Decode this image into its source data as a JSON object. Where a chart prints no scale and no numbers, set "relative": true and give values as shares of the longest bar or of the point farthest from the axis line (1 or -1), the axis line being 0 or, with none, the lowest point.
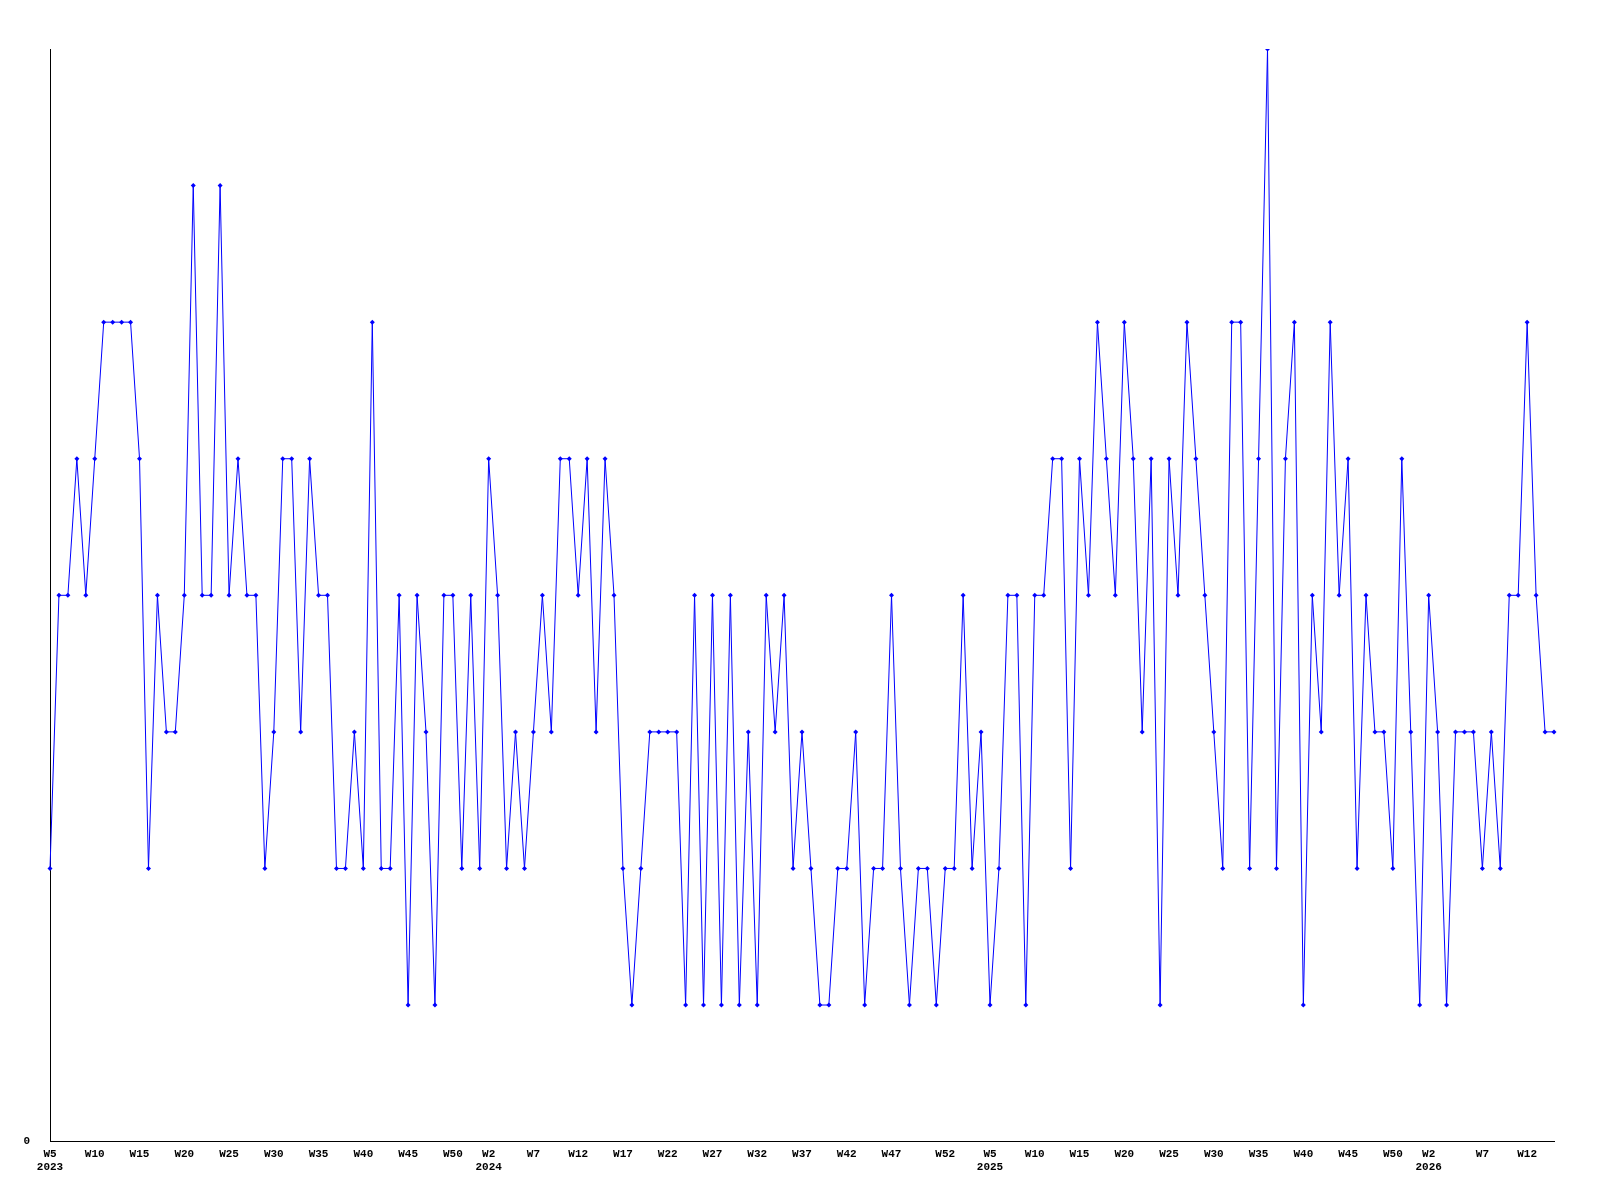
{
  "chart_data": {
    "type": "line",
    "relative": true,
    "grid": false,
    "legend": false,
    "marker": "diamond",
    "line_style": "solid",
    "annotations": [
      "0"
    ],
    "categories": [
      "W5 2023",
      null,
      null,
      null,
      null,
      "W10",
      null,
      null,
      null,
      null,
      "W15",
      null,
      null,
      null,
      null,
      "W20",
      null,
      null,
      null,
      null,
      "W25",
      null,
      null,
      null,
      null,
      "W30",
      null,
      null,
      null,
      null,
      "W35",
      null,
      null,
      null,
      null,
      "W40",
      null,
      null,
      null,
      null,
      "W45",
      null,
      null,
      null,
      null,
      "W50",
      null,
      null,
      null,
      "W2 2024",
      null,
      null,
      null,
      null,
      "W7",
      null,
      null,
      null,
      null,
      "W12",
      null,
      null,
      null,
      null,
      "W17",
      null,
      null,
      null,
      null,
      "W22",
      null,
      null,
      null,
      null,
      "W27",
      null,
      null,
      null,
      null,
      "W32",
      null,
      null,
      null,
      null,
      "W37",
      null,
      null,
      null,
      null,
      "W42",
      null,
      null,
      null,
      null,
      "W47",
      null,
      null,
      null,
      null,
      null,
      "W52",
      null,
      null,
      null,
      null,
      "W5 2025",
      null,
      null,
      null,
      null,
      "W10",
      null,
      null,
      null,
      null,
      "W15",
      null,
      null,
      null,
      null,
      "W20",
      null,
      null,
      null,
      null,
      "W25",
      null,
      null,
      null,
      null,
      "W30",
      null,
      null,
      null,
      null,
      "W35",
      null,
      null,
      null,
      null,
      "W40",
      null,
      null,
      null,
      null,
      "W45",
      null,
      null,
      null,
      null,
      "W50",
      null,
      null,
      null,
      "W2 2026",
      null,
      null,
      null,
      null,
      null,
      "W7",
      null,
      null,
      null,
      null,
      "W12",
      null,
      null,
      null
    ],
    "series": [
      {
        "color": "#0000ff",
        "values": [
          0.25,
          0.5,
          0.5,
          0.625,
          0.5,
          0.625,
          0.75,
          0.75,
          0.75,
          0.75,
          0.625,
          0.25,
          0.5,
          0.375,
          0.375,
          0.5,
          0.875,
          0.5,
          0.5,
          0.875,
          0.5,
          0.625,
          0.5,
          0.5,
          0.25,
          0.375,
          0.625,
          0.625,
          0.375,
          0.625,
          0.5,
          0.5,
          0.25,
          0.25,
          0.375,
          0.25,
          0.75,
          0.25,
          0.25,
          0.5,
          0.125,
          0.5,
          0.375,
          0.125,
          0.5,
          0.5,
          0.25,
          0.5,
          0.25,
          0.625,
          0.5,
          0.25,
          0.375,
          0.25,
          0.375,
          0.5,
          0.375,
          0.625,
          0.625,
          0.5,
          0.625,
          0.375,
          0.625,
          0.5,
          0.25,
          0.125,
          0.25,
          0.375,
          0.375,
          0.375,
          0.375,
          0.125,
          0.5,
          0.125,
          0.5,
          0.125,
          0.5,
          0.125,
          0.375,
          0.125,
          0.5,
          0.375,
          0.5,
          0.25,
          0.375,
          0.25,
          0.125,
          0.125,
          0.25,
          0.25,
          0.375,
          0.125,
          0.25,
          0.25,
          0.5,
          0.25,
          0.125,
          0.25,
          0.25,
          0.125,
          0.25,
          0.25,
          0.5,
          0.25,
          0.375,
          0.125,
          0.25,
          0.5,
          0.5,
          0.125,
          0.5,
          0.5,
          0.625,
          0.625,
          0.25,
          0.625,
          0.5,
          0.75,
          0.625,
          0.5,
          0.75,
          0.625,
          0.375,
          0.625,
          0.125,
          0.625,
          0.5,
          0.75,
          0.625,
          0.5,
          0.375,
          0.25,
          0.75,
          0.75,
          0.25,
          0.625,
          1,
          0.25,
          0.625,
          0.75,
          0.125,
          0.5,
          0.375,
          0.75,
          0.5,
          0.625,
          0.25,
          0.5,
          0.375,
          0.375,
          0.25,
          0.625,
          0.375,
          0.125,
          0.5,
          0.375,
          0.125,
          0.375,
          0.375,
          0.375,
          0.25,
          0.375,
          0.25,
          0.5,
          0.5,
          0.75,
          0.5,
          0.375,
          0.375
        ]
      }
    ]
  }
}
